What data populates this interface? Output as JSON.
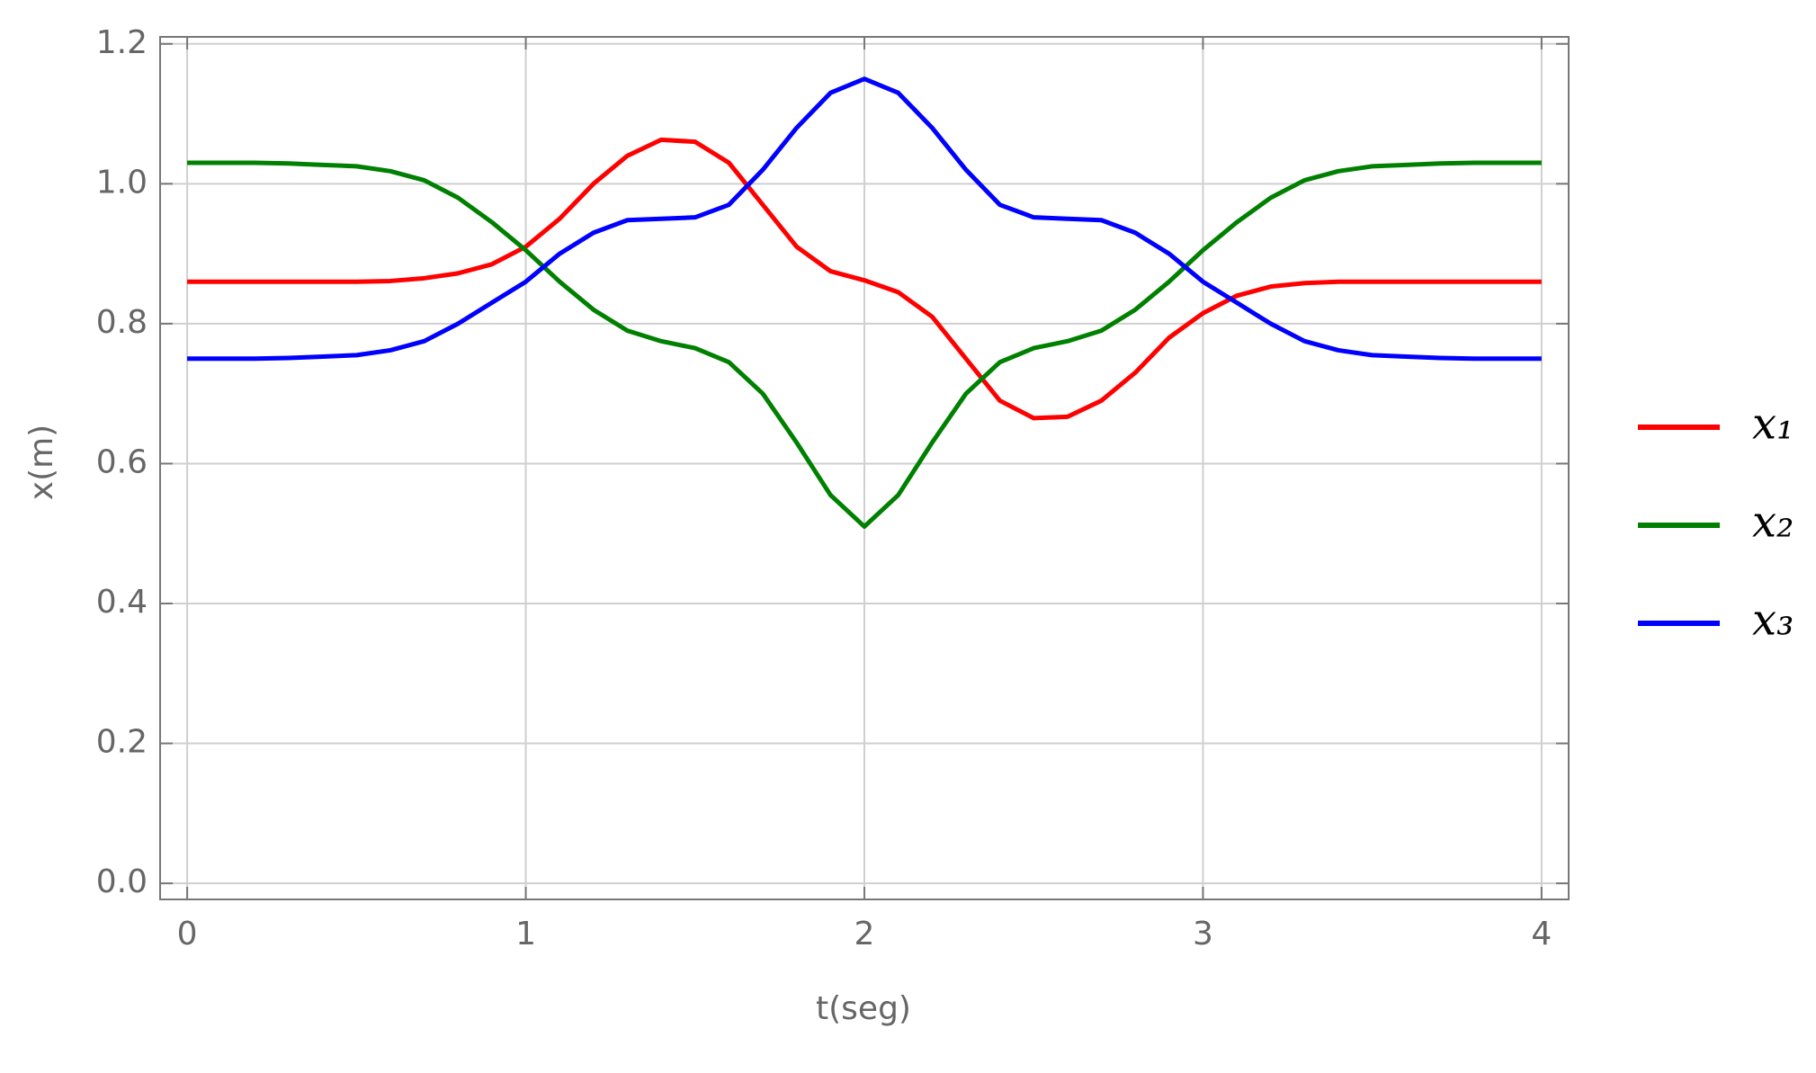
{
  "chart_data": {
    "type": "line",
    "x_label": "t(seg)",
    "y_label": "x(m)",
    "x": [
      0,
      0.1,
      0.2,
      0.3,
      0.4,
      0.5,
      0.6,
      0.7,
      0.8,
      0.9,
      1,
      1.1,
      1.2,
      1.3,
      1.4,
      1.5,
      1.6,
      1.7,
      1.8,
      1.9,
      2,
      2.1,
      2.2,
      2.3,
      2.4,
      2.5,
      2.6,
      2.7,
      2.8,
      2.9,
      3,
      3.1,
      3.2,
      3.3,
      3.4,
      3.5,
      3.6,
      3.7,
      3.8,
      3.9,
      4
    ],
    "series": [
      {
        "name": "x₁",
        "color": "#ff0000",
        "values": [
          0.86,
          0.86,
          0.86,
          0.86,
          0.86,
          0.86,
          0.861,
          0.865,
          0.872,
          0.885,
          0.91,
          0.95,
          1.0,
          1.04,
          1.063,
          1.06,
          1.03,
          0.97,
          0.91,
          0.875,
          0.862,
          0.845,
          0.81,
          0.75,
          0.69,
          0.665,
          0.667,
          0.69,
          0.73,
          0.78,
          0.815,
          0.84,
          0.853,
          0.858,
          0.86,
          0.86,
          0.86,
          0.86,
          0.86,
          0.86,
          0.86
        ]
      },
      {
        "name": "x₂",
        "color": "#008000",
        "values": [
          1.03,
          1.03,
          1.03,
          1.029,
          1.027,
          1.025,
          1.018,
          1.005,
          0.98,
          0.945,
          0.905,
          0.86,
          0.82,
          0.79,
          0.775,
          0.765,
          0.745,
          0.7,
          0.63,
          0.555,
          0.51,
          0.555,
          0.63,
          0.7,
          0.745,
          0.765,
          0.775,
          0.79,
          0.82,
          0.86,
          0.905,
          0.945,
          0.98,
          1.005,
          1.018,
          1.025,
          1.027,
          1.029,
          1.03,
          1.03,
          1.03
        ]
      },
      {
        "name": "x₃",
        "color": "#0000ff",
        "values": [
          0.75,
          0.75,
          0.75,
          0.751,
          0.753,
          0.755,
          0.762,
          0.775,
          0.8,
          0.83,
          0.86,
          0.9,
          0.93,
          0.948,
          0.95,
          0.952,
          0.97,
          1.02,
          1.08,
          1.13,
          1.15,
          1.13,
          1.08,
          1.02,
          0.97,
          0.952,
          0.95,
          0.948,
          0.93,
          0.9,
          0.86,
          0.83,
          0.8,
          0.775,
          0.762,
          0.755,
          0.753,
          0.751,
          0.75,
          0.75,
          0.75
        ]
      }
    ],
    "xlim": [
      -0.08,
      4.08
    ],
    "ylim": [
      -0.023,
      1.21
    ],
    "xticks": [
      0,
      1,
      2,
      3,
      4
    ],
    "yticks": [
      {
        "value": 0,
        "label": "0.0"
      },
      0.2,
      0.4,
      0.6,
      0.8,
      {
        "value": 1,
        "label": "1.0"
      },
      1.2
    ],
    "grid": true,
    "legend": "right"
  }
}
